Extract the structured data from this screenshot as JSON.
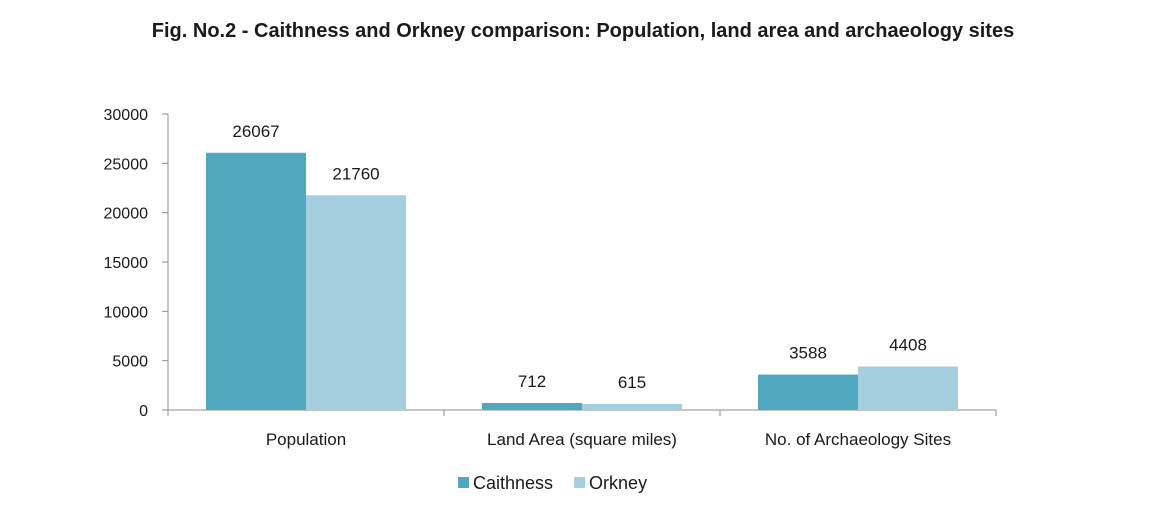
{
  "chart_data": {
    "type": "bar",
    "title": "Fig. No.2 - Caithness and Orkney comparison: Population, land area and archaeology sites",
    "xlabel": "",
    "ylabel": "",
    "categories": [
      "Population",
      "Land Area (square miles)",
      "No. of Archaeology Sites"
    ],
    "series": [
      {
        "name": "Caithness",
        "values": [
          26067,
          712,
          3588
        ],
        "color": "#4fa8bd"
      },
      {
        "name": "Orkney",
        "values": [
          21760,
          615,
          4408
        ],
        "color": "#a3cfdf"
      }
    ],
    "ylim": [
      0,
      30000
    ],
    "yticks": [
      0,
      5000,
      10000,
      15000,
      20000,
      25000,
      30000
    ],
    "grid": false,
    "legend": "bottom",
    "data_labels": true
  }
}
